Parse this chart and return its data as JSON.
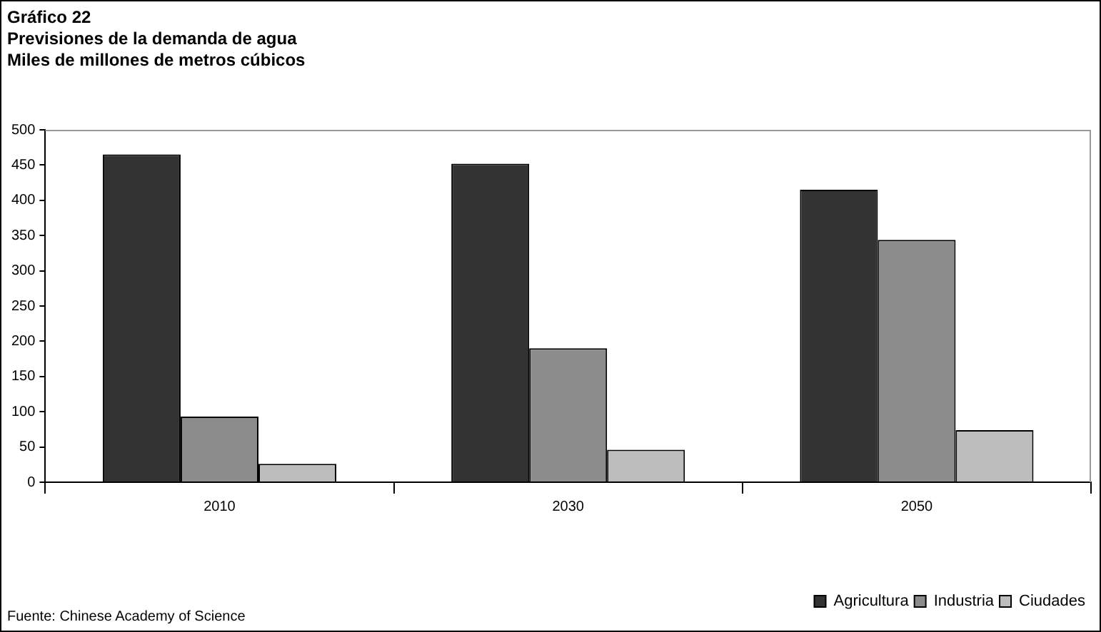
{
  "chart_data": {
    "type": "bar",
    "title": "Gráfico 22",
    "subtitle": "Previsiones de la demanda de agua",
    "ylabel": "Miles de millones de metros cúbicos",
    "categories": [
      "2010",
      "2030",
      "2050"
    ],
    "series": [
      {
        "name": "Agricultura",
        "color": "#333333",
        "values": [
          465,
          452,
          415
        ]
      },
      {
        "name": "Industria",
        "color": "#8c8c8c",
        "values": [
          93,
          190,
          344
        ]
      },
      {
        "name": "Ciudades",
        "color": "#bdbdbd",
        "values": [
          26,
          46,
          74
        ]
      }
    ],
    "ylim": [
      0,
      500
    ],
    "yticks": [
      0,
      50,
      100,
      150,
      200,
      250,
      300,
      350,
      400,
      450,
      500
    ],
    "legend": "bottom right",
    "annotations": [
      "Fuente: Chinese Academy of Science"
    ]
  }
}
